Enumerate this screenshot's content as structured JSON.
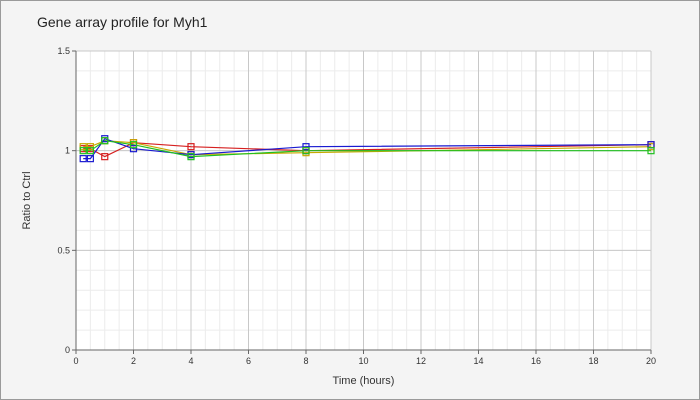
{
  "chart_data": {
    "type": "line",
    "title": "Gene array profile for Myh1",
    "xlabel": "Time (hours)",
    "ylabel": "Ratio to Ctrl",
    "xlim": [
      0,
      20
    ],
    "ylim": [
      0,
      1.5
    ],
    "x_ticks": [
      0,
      2,
      4,
      6,
      8,
      10,
      12,
      14,
      16,
      18,
      20
    ],
    "x_tick_labels": [
      "0",
      "2",
      "4",
      "6",
      "8",
      "10",
      "12",
      "14",
      "16",
      "18",
      "20"
    ],
    "y_ticks": [
      0,
      0.5,
      1,
      1.5
    ],
    "y_tick_labels": [
      "0",
      "0.5",
      "1",
      "1.5"
    ],
    "grid": true,
    "legend": false,
    "series": [
      {
        "color": "#d62020",
        "x": [
          0.25,
          0.5,
          1,
          2,
          4,
          8,
          20
        ],
        "y": [
          1.01,
          1.01,
          0.97,
          1.04,
          1.02,
          1.0,
          1.03
        ]
      },
      {
        "color": "#c8a800",
        "x": [
          0.25,
          0.5,
          1,
          2,
          4,
          8,
          20
        ],
        "y": [
          1.02,
          1.02,
          1.05,
          1.04,
          0.98,
          0.99,
          1.02
        ]
      },
      {
        "color": "#1a1ad0",
        "x": [
          0.25,
          0.5,
          1,
          2,
          4,
          8,
          20
        ],
        "y": [
          0.96,
          0.96,
          1.06,
          1.01,
          0.98,
          1.02,
          1.03
        ]
      },
      {
        "color": "#20c020",
        "x": [
          0.25,
          0.5,
          1,
          2,
          4,
          8,
          20
        ],
        "y": [
          1.0,
          1.0,
          1.05,
          1.03,
          0.97,
          1.0,
          1.0
        ]
      }
    ]
  }
}
